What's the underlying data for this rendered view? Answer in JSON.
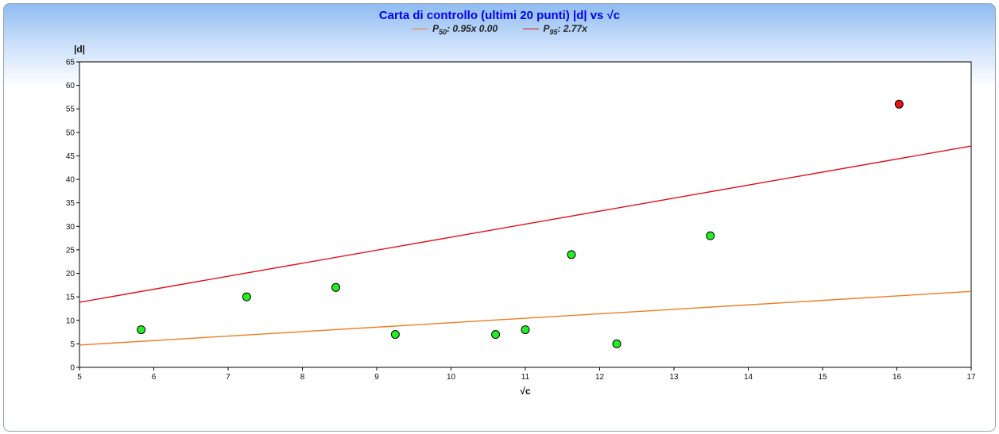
{
  "chart_data": {
    "type": "scatter",
    "title": "Carta di controllo (ultimi 20 punti) |d| vs √c",
    "xlabel": "√c",
    "ylabel": "|d|",
    "xlim": [
      5,
      17
    ],
    "ylim": [
      0,
      65
    ],
    "xticks": [
      5,
      6,
      7,
      8,
      9,
      10,
      11,
      12,
      13,
      14,
      15,
      16,
      17
    ],
    "yticks": [
      0,
      5,
      10,
      15,
      20,
      25,
      30,
      35,
      40,
      45,
      50,
      55,
      60,
      65
    ],
    "grid": false,
    "legend": [
      {
        "sym": "P",
        "sub": "50",
        "text": ": 0.95x 0.00",
        "color": "#f07c1e"
      },
      {
        "sym": "P",
        "sub": "95",
        "text": ": 2.77x",
        "color": "#e3101a"
      }
    ],
    "lines": [
      {
        "slope": 0.95,
        "intercept": 0.0,
        "color": "#f07c1e"
      },
      {
        "slope": 2.77,
        "intercept": 0.0,
        "color": "#e3101a"
      }
    ],
    "points": [
      {
        "x": 5.83,
        "y": 8,
        "color": "#22ee22"
      },
      {
        "x": 7.25,
        "y": 15,
        "color": "#22ee22"
      },
      {
        "x": 8.45,
        "y": 17,
        "color": "#22ee22"
      },
      {
        "x": 9.25,
        "y": 7,
        "color": "#22ee22"
      },
      {
        "x": 10.6,
        "y": 7,
        "color": "#22ee22"
      },
      {
        "x": 11.0,
        "y": 8,
        "color": "#22ee22"
      },
      {
        "x": 11.62,
        "y": 24,
        "color": "#22ee22"
      },
      {
        "x": 12.23,
        "y": 5,
        "color": "#22ee22"
      },
      {
        "x": 13.49,
        "y": 28,
        "color": "#22ee22"
      },
      {
        "x": 16.03,
        "y": 56,
        "color": "#ee1111"
      }
    ]
  }
}
